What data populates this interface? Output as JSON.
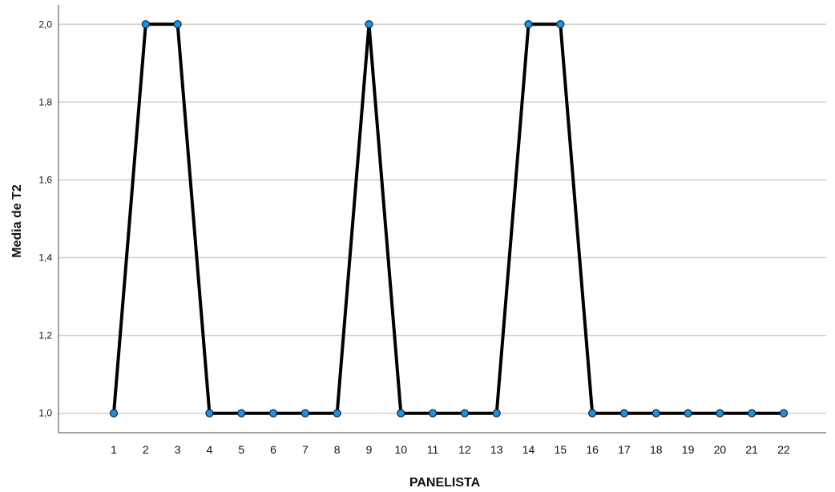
{
  "chart_data": {
    "type": "line",
    "title": "",
    "xlabel": "PANELISTA",
    "ylabel": "Media de T2",
    "categories": [
      "1",
      "2",
      "3",
      "4",
      "5",
      "6",
      "7",
      "8",
      "9",
      "10",
      "11",
      "12",
      "13",
      "14",
      "15",
      "16",
      "17",
      "18",
      "19",
      "20",
      "21",
      "22"
    ],
    "series": [
      {
        "values": [
          1.0,
          2.0,
          2.0,
          1.0,
          1.0,
          1.0,
          1.0,
          1.0,
          2.0,
          1.0,
          1.0,
          1.0,
          1.0,
          2.0,
          2.0,
          1.0,
          1.0,
          1.0,
          1.0,
          1.0,
          1.0,
          1.0
        ]
      }
    ],
    "ylim": [
      0.95,
      2.05
    ],
    "yticks": [
      1.0,
      1.2,
      1.4,
      1.6,
      1.8,
      2.0
    ],
    "ytick_labels": [
      "1,0",
      "1,2",
      "1,4",
      "1,6",
      "1,8",
      "2,0"
    ],
    "grid": "horizontal",
    "legend": "none",
    "colors": {
      "line": "#000000",
      "marker_fill": "#1f8fe0",
      "marker_stroke": "#0b2a42",
      "grid": "#cfcfcf",
      "axis": "#444444"
    }
  }
}
